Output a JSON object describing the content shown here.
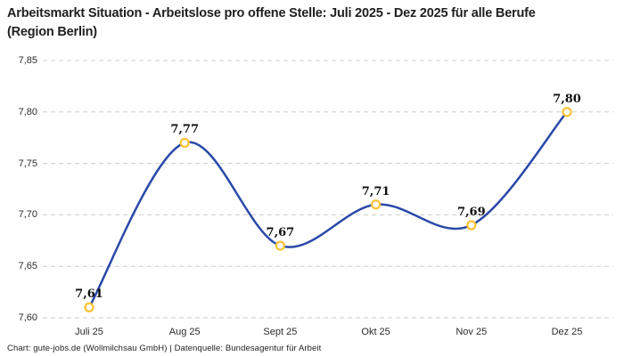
{
  "footer": {
    "credit": "Chart: gute-jobs.de (Wollmilchsau GmbH) | Datenquelle: Bundesagentur für Arbeit"
  },
  "chart_data": {
    "type": "line",
    "title": "Arbeitsmarkt Situation - Arbeitslose pro offene Stelle: Juli 2025 - Dez 2025 für alle Berufe (Region Berlin)",
    "categories": [
      "Juli 25",
      "Aug 25",
      "Sept 25",
      "Okt 25",
      "Nov 25",
      "Dez 25"
    ],
    "values": [
      7.61,
      7.77,
      7.67,
      7.71,
      7.69,
      7.8
    ],
    "point_labels": [
      "7,61",
      "7,77",
      "7,67",
      "7,71",
      "7,69",
      "7,80"
    ],
    "yticks": [
      "7,85",
      "7,80",
      "7,75",
      "7,70",
      "7,65",
      "7,60"
    ],
    "ytick_values": [
      7.85,
      7.8,
      7.75,
      7.7,
      7.65,
      7.6
    ],
    "ylim": [
      7.6,
      7.85
    ],
    "xlabel": "",
    "ylabel": "",
    "grid": "horizontal-dashed",
    "legend": "none",
    "curve": "smooth-spline",
    "marker": "open-circle",
    "colors": {
      "line": "#2A49A8",
      "marker_ring": "#FCC233",
      "marker_fill": "#FFFFFF",
      "gridline": "#CCCCCC",
      "title_text": "#1F1F1F",
      "tick_text": "#2B2B2B",
      "point_label_text": "#0F0F0F",
      "background": "#FFFFFF"
    }
  }
}
